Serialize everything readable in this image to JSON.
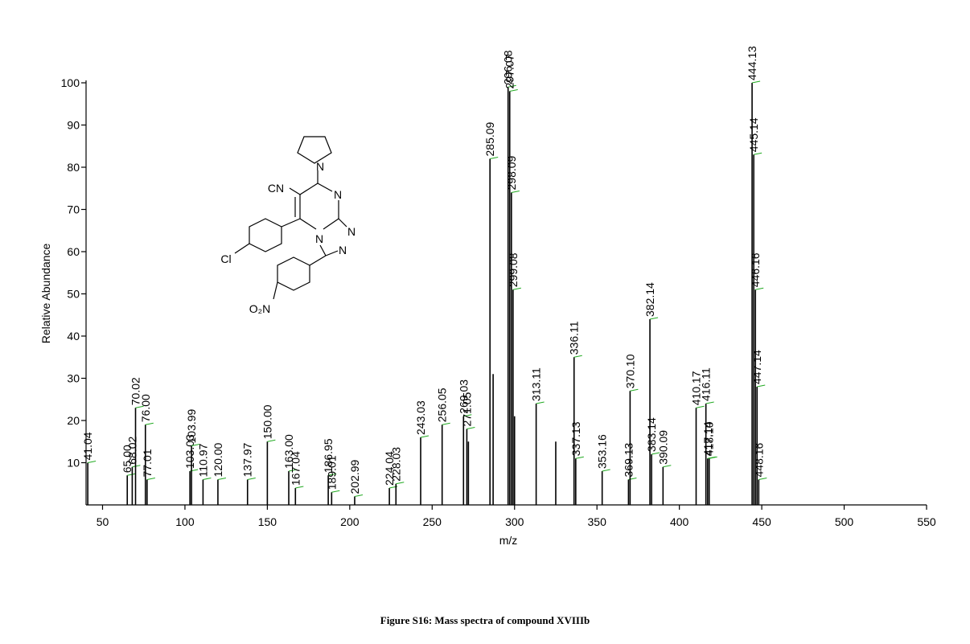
{
  "chart_data": {
    "type": "spectrum",
    "caption": "Figure S16: Mass spectra of compound XVIIIb",
    "x_label": "m/z",
    "y_label": "Relative Abundance",
    "xlim": [
      40,
      550
    ],
    "xticks": [
      50,
      100,
      150,
      200,
      250,
      300,
      350,
      400,
      450,
      500,
      550
    ],
    "ylim": [
      0,
      100
    ],
    "yticks": [
      10,
      20,
      30,
      40,
      50,
      60,
      70,
      80,
      90,
      100
    ],
    "color": "#000000",
    "leader_color": "#22aa22",
    "x": [
      41.04,
      65.0,
      68.02,
      70.02,
      76.0,
      77.01,
      103.03,
      103.99,
      110.97,
      120.0,
      137.97,
      150.0,
      163.0,
      167.04,
      186.95,
      189.01,
      202.99,
      224.04,
      228.03,
      243.03,
      256.05,
      269.03,
      271.05,
      272.0,
      285.09,
      287.0,
      296.08,
      297.07,
      298.09,
      299.08,
      300.0,
      313.11,
      325.0,
      336.11,
      337.13,
      353.16,
      369.13,
      370.1,
      382.14,
      383.14,
      390.09,
      410.17,
      416.11,
      417.14,
      418.1,
      444.13,
      445.14,
      446.16,
      447.14,
      448.16
    ],
    "x_labels": [
      "41.04",
      "65.00",
      "68.02",
      "70.02",
      "76.00",
      "77.01",
      "103.03",
      "103.99",
      "110.97",
      "120.00",
      "137.97",
      "150.00",
      "163.00",
      "167.04",
      "186.95",
      "189.01",
      "202.99",
      "224.04",
      "228.03",
      "243.03",
      "256.05",
      "269.03",
      "271.05",
      null,
      "285.09",
      null,
      "296.08",
      "297.07",
      "298.09",
      "299.08",
      null,
      "313.11",
      null,
      "336.11",
      "337.13",
      "353.16",
      "369.13",
      "370.10",
      "382.14",
      "383.14",
      "390.09",
      "410.17",
      "416.11",
      "417.14",
      "418.10",
      "444.13",
      "445.14",
      "446.16",
      "447.14",
      "448.16"
    ],
    "values": [
      10,
      7,
      9,
      23,
      19,
      6,
      8,
      14,
      6,
      6,
      6,
      15,
      8,
      4,
      7,
      3,
      2,
      4,
      5,
      16,
      19,
      21,
      18,
      15,
      82,
      31,
      99,
      98,
      74,
      51,
      21,
      24,
      15,
      35,
      11,
      8,
      6,
      27,
      44,
      12,
      9,
      23,
      24,
      11,
      11,
      100,
      83,
      51,
      28,
      6
    ]
  },
  "structure": {
    "labels": [
      "N",
      "CN",
      "N",
      "N",
      "N",
      "N",
      "Cl",
      "O₂N"
    ]
  }
}
